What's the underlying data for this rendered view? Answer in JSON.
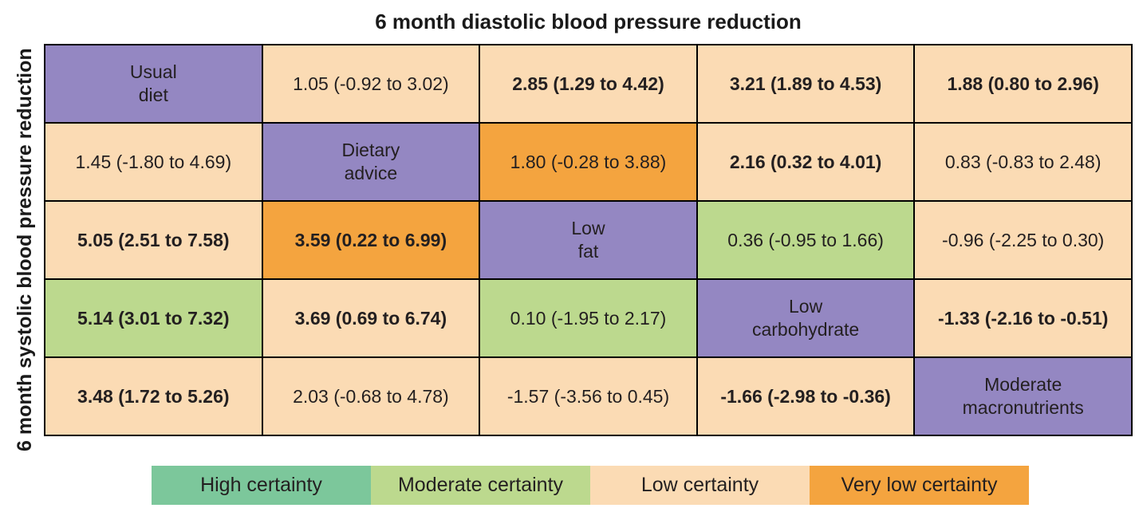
{
  "title": "6 month diastolic blood pressure reduction",
  "y_axis_label": "6 month systolic blood pressure reduction",
  "colors": {
    "diagonal": "#9487c2",
    "high": "#7cc79b",
    "moderate": "#bcd98e",
    "low": "#fbdbb4",
    "very_low": "#f4a43f",
    "text": "#231f20",
    "border": "#000000"
  },
  "legend": {
    "items": [
      {
        "label": "High certainty",
        "certainty": "high"
      },
      {
        "label": "Moderate certainty",
        "certainty": "moderate"
      },
      {
        "label": "Low certainty",
        "certainty": "low"
      },
      {
        "label": "Very low certainty",
        "certainty": "very_low"
      }
    ]
  },
  "chart_data": {
    "type": "heatmap",
    "layout": "network meta-analysis league table; upper-right triangle shows 6 month diastolic blood pressure reduction, lower-left triangle shows 6 month systolic blood pressure reduction; diagonal cells are diet names; cell colour encodes certainty of evidence; values are effect estimates (95% confidence intervals); bold text marks intervals excluding zero",
    "treatments": [
      "Usual diet",
      "Dietary advice",
      "Low fat",
      "Low carbohydrate",
      "Moderate macronutrients"
    ],
    "cells": [
      [
        {
          "text": "Usual\ndiet",
          "diagonal": true,
          "certainty": "diagonal",
          "bold": false
        },
        {
          "text": "1.05 (-0.92 to 3.02)",
          "diagonal": false,
          "certainty": "low",
          "bold": false
        },
        {
          "text": "2.85 (1.29 to 4.42)",
          "diagonal": false,
          "certainty": "low",
          "bold": true
        },
        {
          "text": "3.21 (1.89 to 4.53)",
          "diagonal": false,
          "certainty": "low",
          "bold": true
        },
        {
          "text": "1.88 (0.80 to 2.96)",
          "diagonal": false,
          "certainty": "low",
          "bold": true
        }
      ],
      [
        {
          "text": "1.45 (-1.80 to 4.69)",
          "diagonal": false,
          "certainty": "low",
          "bold": false
        },
        {
          "text": "Dietary\nadvice",
          "diagonal": true,
          "certainty": "diagonal",
          "bold": false
        },
        {
          "text": "1.80 (-0.28 to 3.88)",
          "diagonal": false,
          "certainty": "very_low",
          "bold": false
        },
        {
          "text": "2.16 (0.32 to 4.01)",
          "diagonal": false,
          "certainty": "low",
          "bold": true
        },
        {
          "text": "0.83 (-0.83 to 2.48)",
          "diagonal": false,
          "certainty": "low",
          "bold": false
        }
      ],
      [
        {
          "text": "5.05 (2.51 to 7.58)",
          "diagonal": false,
          "certainty": "low",
          "bold": true
        },
        {
          "text": "3.59 (0.22 to 6.99)",
          "diagonal": false,
          "certainty": "very_low",
          "bold": true
        },
        {
          "text": "Low\nfat",
          "diagonal": true,
          "certainty": "diagonal",
          "bold": false
        },
        {
          "text": "0.36 (-0.95 to 1.66)",
          "diagonal": false,
          "certainty": "moderate",
          "bold": false
        },
        {
          "text": "-0.96 (-2.25 to 0.30)",
          "diagonal": false,
          "certainty": "low",
          "bold": false
        }
      ],
      [
        {
          "text": "5.14 (3.01 to 7.32)",
          "diagonal": false,
          "certainty": "moderate",
          "bold": true
        },
        {
          "text": "3.69 (0.69 to 6.74)",
          "diagonal": false,
          "certainty": "low",
          "bold": true
        },
        {
          "text": "0.10 (-1.95 to 2.17)",
          "diagonal": false,
          "certainty": "moderate",
          "bold": false
        },
        {
          "text": "Low\ncarbohydrate",
          "diagonal": true,
          "certainty": "diagonal",
          "bold": false
        },
        {
          "text": "-1.33 (-2.16 to -0.51)",
          "diagonal": false,
          "certainty": "low",
          "bold": true
        }
      ],
      [
        {
          "text": "3.48 (1.72 to 5.26)",
          "diagonal": false,
          "certainty": "low",
          "bold": true
        },
        {
          "text": "2.03 (-0.68 to 4.78)",
          "diagonal": false,
          "certainty": "low",
          "bold": false
        },
        {
          "text": "-1.57 (-3.56 to 0.45)",
          "diagonal": false,
          "certainty": "low",
          "bold": false
        },
        {
          "text": "-1.66 (-2.98 to -0.36)",
          "diagonal": false,
          "certainty": "low",
          "bold": true
        },
        {
          "text": "Moderate\nmacronutrients",
          "diagonal": true,
          "certainty": "diagonal",
          "bold": false
        }
      ]
    ]
  }
}
